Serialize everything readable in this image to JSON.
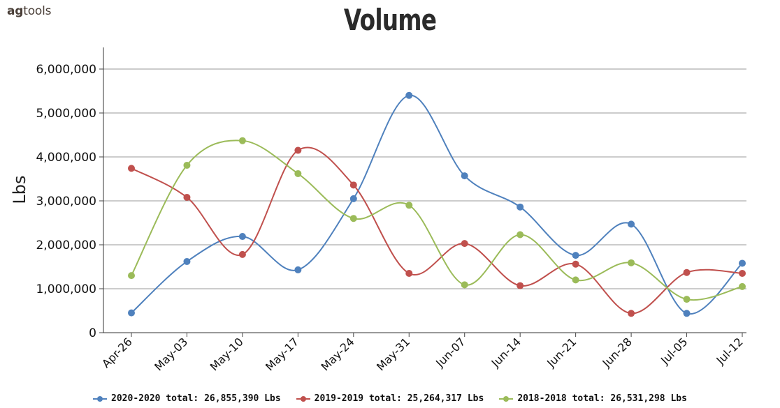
{
  "brand": {
    "prefix": "ag",
    "suffix": "tools"
  },
  "chart_data": {
    "type": "line",
    "title": "Volume",
    "xlabel": "",
    "ylabel": "Lbs",
    "ylim": [
      0,
      6500000
    ],
    "yticks": [
      0,
      1000000,
      2000000,
      3000000,
      4000000,
      5000000,
      6000000
    ],
    "ytick_labels": [
      "0",
      "1,000,000",
      "2,000,000",
      "3,000,000",
      "4,000,000",
      "5,000,000",
      "6,000,000"
    ],
    "grid": true,
    "legend_position": "bottom",
    "categories": [
      "Apr-26",
      "May-03",
      "May-10",
      "May-17",
      "May-24",
      "May-31",
      "Jun-07",
      "Jun-14",
      "Jun-21",
      "Jun-28",
      "Jul-05",
      "Jul-12"
    ],
    "series": [
      {
        "name": "2020-2020 total: 26,855,390 Lbs",
        "color": "#4f81bd",
        "values": [
          450000,
          1620000,
          2190000,
          1430000,
          3050000,
          5400000,
          3570000,
          2860000,
          1760000,
          2470000,
          440000,
          1580000
        ]
      },
      {
        "name": "2019-2019 total: 25,264,317 Lbs",
        "color": "#c0504d",
        "values": [
          3740000,
          3080000,
          1780000,
          4150000,
          3360000,
          1350000,
          2030000,
          1070000,
          1560000,
          440000,
          1370000,
          1350000
        ]
      },
      {
        "name": "2018-2018 total: 26,531,298 Lbs",
        "color": "#9bbb59",
        "values": [
          1300000,
          3810000,
          4370000,
          3620000,
          2600000,
          2900000,
          1090000,
          2230000,
          1200000,
          1590000,
          760000,
          1050000
        ]
      }
    ]
  }
}
